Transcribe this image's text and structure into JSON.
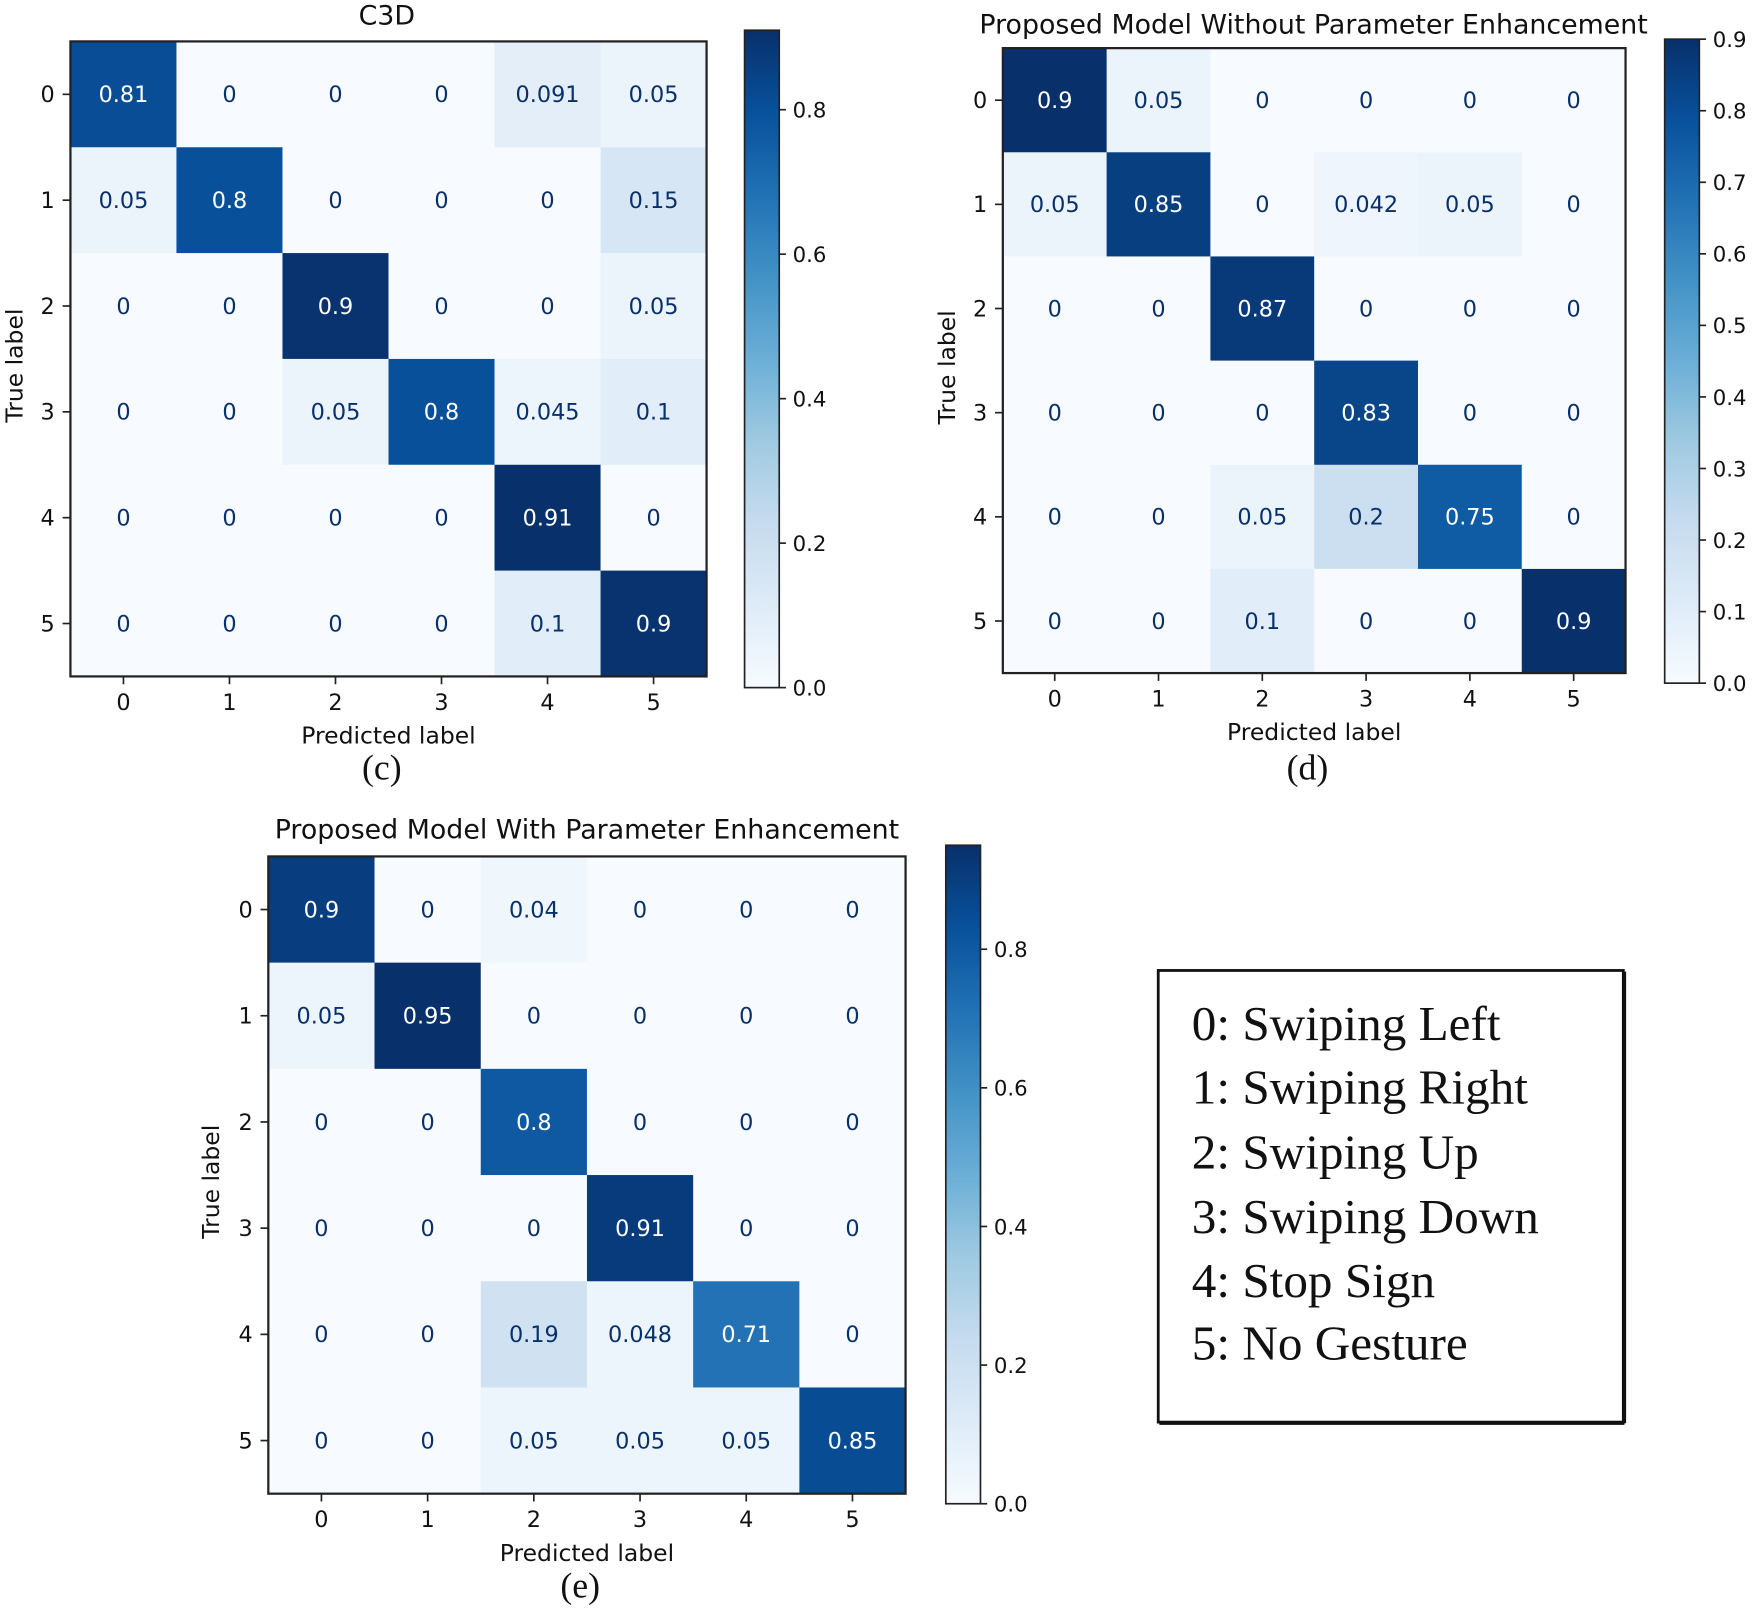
{
  "chart_data": [
    {
      "type": "heatmap",
      "id": "c",
      "title": "C3D",
      "caption": "(c)",
      "xlabel": "Predicted label",
      "ylabel": "True label",
      "x_ticks": [
        "0",
        "1",
        "2",
        "3",
        "4",
        "5"
      ],
      "y_ticks": [
        "0",
        "1",
        "2",
        "3",
        "4",
        "5"
      ],
      "matrix": [
        [
          "0.81",
          "0",
          "0",
          "0",
          "0.091",
          "0.05"
        ],
        [
          "0.05",
          "0.8",
          "0",
          "0",
          "0",
          "0.15"
        ],
        [
          "0",
          "0",
          "0.9",
          "0",
          "0",
          "0.05"
        ],
        [
          "0",
          "0",
          "0.05",
          "0.8",
          "0.045",
          "0.1"
        ],
        [
          "0",
          "0",
          "0",
          "0",
          "0.91",
          "0"
        ],
        [
          "0",
          "0",
          "0",
          "0",
          "0.1",
          "0.9"
        ]
      ],
      "colorbar": {
        "range": [
          0,
          0.91
        ],
        "ticks": [
          "0.0",
          "0.2",
          "0.4",
          "0.6",
          "0.8"
        ]
      },
      "colormap": "Blues"
    },
    {
      "type": "heatmap",
      "id": "d",
      "title": "Proposed Model Without Parameter Enhancement",
      "caption": "(d)",
      "xlabel": "Predicted label",
      "ylabel": "True label",
      "x_ticks": [
        "0",
        "1",
        "2",
        "3",
        "4",
        "5"
      ],
      "y_ticks": [
        "0",
        "1",
        "2",
        "3",
        "4",
        "5"
      ],
      "matrix": [
        [
          "0.9",
          "0.05",
          "0",
          "0",
          "0",
          "0"
        ],
        [
          "0.05",
          "0.85",
          "0",
          "0.042",
          "0.05",
          "0"
        ],
        [
          "0",
          "0",
          "0.87",
          "0",
          "0",
          "0"
        ],
        [
          "0",
          "0",
          "0",
          "0.83",
          "0",
          "0"
        ],
        [
          "0",
          "0",
          "0.05",
          "0.2",
          "0.75",
          "0"
        ],
        [
          "0",
          "0",
          "0.1",
          "0",
          "0",
          "0.9"
        ]
      ],
      "colorbar": {
        "range": [
          0,
          0.9
        ],
        "ticks": [
          "0.0",
          "0.1",
          "0.2",
          "0.3",
          "0.4",
          "0.5",
          "0.6",
          "0.7",
          "0.8",
          "0.9"
        ]
      },
      "colormap": "Blues"
    },
    {
      "type": "heatmap",
      "id": "e",
      "title": "Proposed Model With Parameter Enhancement",
      "caption": "(e)",
      "xlabel": "Predicted label",
      "ylabel": "True label",
      "x_ticks": [
        "0",
        "1",
        "2",
        "3",
        "4",
        "5"
      ],
      "y_ticks": [
        "0",
        "1",
        "2",
        "3",
        "4",
        "5"
      ],
      "matrix": [
        [
          "0.9",
          "0",
          "0.04",
          "0",
          "0",
          "0"
        ],
        [
          "0.05",
          "0.95",
          "0",
          "0",
          "0",
          "0"
        ],
        [
          "0",
          "0",
          "0.8",
          "0",
          "0",
          "0"
        ],
        [
          "0",
          "0",
          "0",
          "0.91",
          "0",
          "0"
        ],
        [
          "0",
          "0",
          "0.19",
          "0.048",
          "0.71",
          "0"
        ],
        [
          "0",
          "0",
          "0.05",
          "0.05",
          "0.05",
          "0.85"
        ]
      ],
      "colorbar": {
        "range": [
          0,
          0.95
        ],
        "ticks": [
          "0.0",
          "0.2",
          "0.4",
          "0.6",
          "0.8"
        ]
      },
      "colormap": "Blues"
    }
  ],
  "legend": {
    "items": [
      "0: Swiping Left",
      "1: Swiping Right",
      "2: Swiping Up",
      "3: Swiping Down",
      "4: Stop Sign",
      "5: No Gesture"
    ]
  },
  "colors": {
    "text_dark": "#08306b",
    "text_light": "#ffffff",
    "axis": "#222222"
  }
}
